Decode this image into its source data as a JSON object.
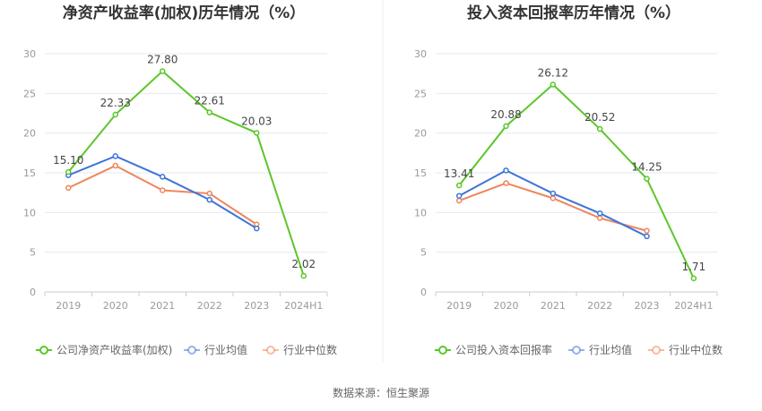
{
  "source": "数据来源：恒生聚源",
  "colors": {
    "company": "#5cc72a",
    "industry_avg": "#3f74d8",
    "industry_median": "#f0855a",
    "grid": "#e6e9ef",
    "axis": "#cccccc"
  },
  "chart_data": [
    {
      "type": "line",
      "title": "净资产收益率(加权)历年情况（%）",
      "categories": [
        "2019",
        "2020",
        "2021",
        "2022",
        "2023",
        "2024H1"
      ],
      "ylim": [
        0,
        30
      ],
      "yticks": [
        "0",
        "5",
        "10",
        "15",
        "20",
        "25",
        "30"
      ],
      "grid": true,
      "legend_position": "bottom",
      "series": [
        {
          "name": "公司净资产收益率(加权)",
          "values": [
            15.1,
            22.33,
            27.8,
            22.61,
            20.03,
            2.02
          ],
          "labels": [
            "15.10",
            "22.33",
            "27.80",
            "22.61",
            "20.03",
            "2.02"
          ]
        },
        {
          "name": "行业均值",
          "values": [
            14.7,
            17.1,
            14.5,
            11.6,
            8.0,
            null
          ],
          "labels": []
        },
        {
          "name": "行业中位数",
          "values": [
            13.1,
            15.9,
            12.8,
            12.4,
            8.5,
            null
          ],
          "labels": []
        }
      ]
    },
    {
      "type": "line",
      "title": "投入资本回报率历年情况（%）",
      "categories": [
        "2019",
        "2020",
        "2021",
        "2022",
        "2023",
        "2024H1"
      ],
      "ylim": [
        0,
        30
      ],
      "yticks": [
        "0",
        "5",
        "10",
        "15",
        "20",
        "25",
        "30"
      ],
      "grid": true,
      "legend_position": "bottom",
      "series": [
        {
          "name": "公司投入资本回报率",
          "values": [
            13.41,
            20.88,
            26.12,
            20.52,
            14.25,
            1.71
          ],
          "labels": [
            "13.41",
            "20.88",
            "26.12",
            "20.52",
            "14.25",
            "1.71"
          ]
        },
        {
          "name": "行业均值",
          "values": [
            12.1,
            15.3,
            12.4,
            9.9,
            7.0,
            null
          ],
          "labels": []
        },
        {
          "name": "行业中位数",
          "values": [
            11.5,
            13.7,
            11.8,
            9.3,
            7.7,
            null
          ],
          "labels": []
        }
      ]
    }
  ]
}
